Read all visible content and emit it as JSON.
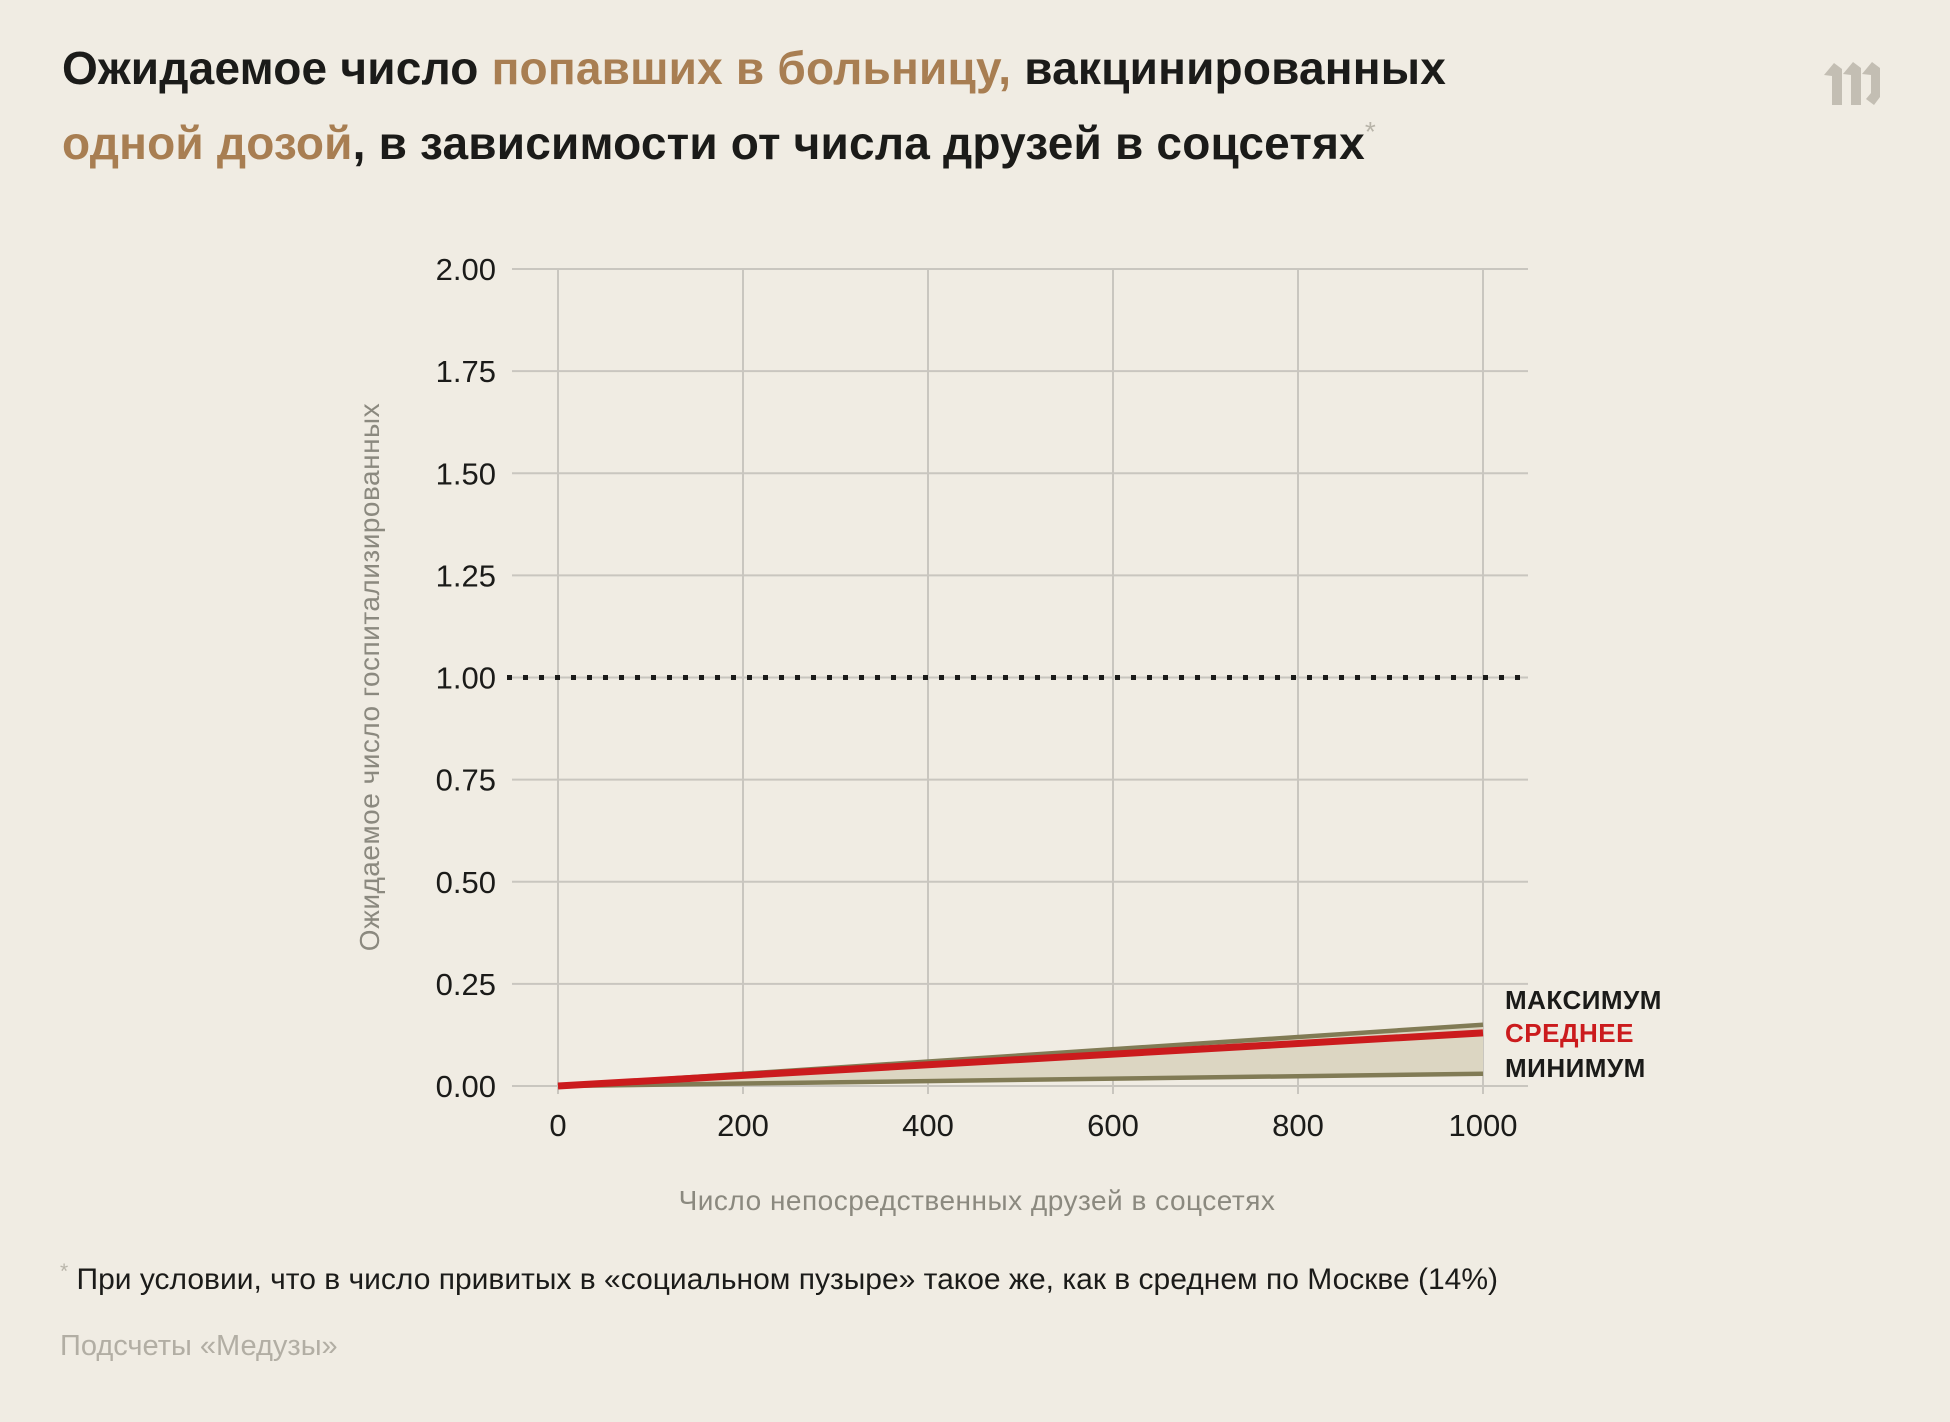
{
  "palette": {
    "background": "#f0ece3",
    "dark_text": "#1b1b19",
    "title_accent": "#a87e52",
    "asterisk_gray": "#b8b4a9",
    "axis_title_gray": "#8b897f",
    "source_gray": "#b2aea4",
    "logo_gray": "#c3beb3"
  },
  "logo": {
    "name": "meduza-m-logo"
  },
  "title": {
    "segments": [
      {
        "text": "Ожидаемое число ",
        "style": "dark"
      },
      {
        "text": "попавших в больницу, ",
        "style": "accent"
      },
      {
        "text": "вакцинированных",
        "style": "dark"
      },
      {
        "text": "одной дозой",
        "style": "accent"
      },
      {
        "text": ", в зависимости от числа друзей в соцсетях",
        "style": "dark"
      },
      {
        "text": "*",
        "style": "asterisk"
      }
    ]
  },
  "chart_data": {
    "type": "area",
    "description": "Min-max band with average line, all starting at 0 and rising linearly to x=1000",
    "x": [
      0,
      1000
    ],
    "series": [
      {
        "name": "МАКСИМУМ",
        "role": "max",
        "values": [
          0,
          0.15
        ],
        "color": "#817b55"
      },
      {
        "name": "СРЕДНЕЕ",
        "role": "avg",
        "values": [
          0,
          0.13
        ],
        "color": "#cb1b1d"
      },
      {
        "name": "МИНИМУМ",
        "role": "min",
        "values": [
          0,
          0.03
        ],
        "color": "#817b55"
      }
    ],
    "reference_line": {
      "value": 1.0,
      "style": "dotted",
      "color": "#1b1b19"
    },
    "xlabel": "Число непосредственных друзей в соцсетях",
    "ylabel": "Ожидаемое число госпитализированных",
    "x_ticks": [
      0,
      200,
      400,
      600,
      800,
      1000
    ],
    "y_ticks": [
      0,
      0.25,
      0.5,
      0.75,
      1,
      1.25,
      1.5,
      1.75,
      2
    ],
    "xlim": [
      0,
      1000
    ],
    "ylim": [
      0,
      2
    ],
    "grid": true,
    "legend_position": "right-of-line-ends",
    "style": {
      "grid_color": "#c9c6bf",
      "tick_color": "#1b1b19",
      "band_fill": "#dcd6c2",
      "band_edge_width": 4.5,
      "avg_line_width": 7
    }
  },
  "footnote": {
    "asterisk": "*",
    "text": " При условии, что в число привитых в «социальном пузыре» такое же, как в среднем по Москве (14%)"
  },
  "source": {
    "text": "Подсчеты «Медузы»"
  }
}
